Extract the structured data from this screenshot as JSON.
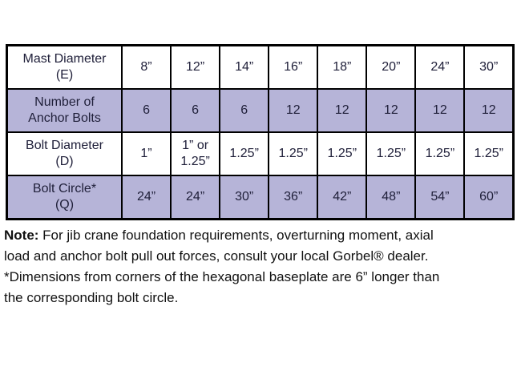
{
  "table": {
    "rows": [
      {
        "header": "Mast Diameter\n(E)",
        "shaded": false,
        "values": [
          "8”",
          "12”",
          "14”",
          "16”",
          "18”",
          "20”",
          "24”",
          "30”"
        ]
      },
      {
        "header": "Number of\nAnchor Bolts",
        "shaded": true,
        "values": [
          "6",
          "6",
          "6",
          "12",
          "12",
          "12",
          "12",
          "12"
        ]
      },
      {
        "header": "Bolt Diameter\n(D)",
        "shaded": false,
        "values": [
          "1”",
          "1” or\n1.25”",
          "1.25”",
          "1.25”",
          "1.25”",
          "1.25”",
          "1.25”",
          "1.25”"
        ]
      },
      {
        "header": "Bolt Circle*\n(Q)",
        "shaded": true,
        "values": [
          "24”",
          "24”",
          "30”",
          "36”",
          "42”",
          "48”",
          "54”",
          "60”"
        ]
      }
    ]
  },
  "note": {
    "bold_label": "Note:",
    "lines": [
      " For jib crane foundation requirements, overturning moment, axial",
      "load and anchor bolt pull out forces, consult your local Gorbel® dealer.",
      "*Dimensions from corners of the hexagonal baseplate are 6” longer than",
      "the corresponding bolt circle."
    ]
  },
  "colors": {
    "shaded_row": "#b6b4d8",
    "border": "#000000",
    "table_text": "#20203a",
    "note_text": "#111111"
  }
}
